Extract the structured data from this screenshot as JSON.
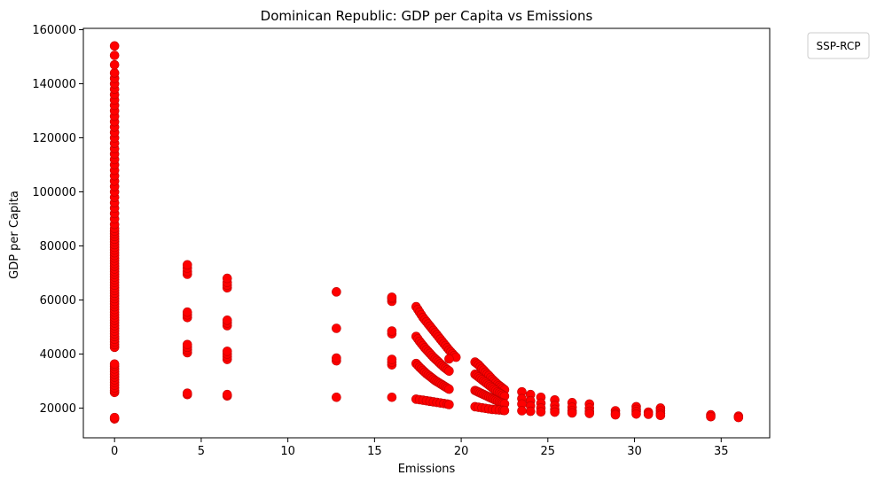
{
  "chart_data": {
    "type": "scatter",
    "title": "Dominican Republic: GDP per Capita vs Emissions",
    "xlabel": "Emissions",
    "ylabel": "GDP per Capita",
    "xlim": [
      -1.8,
      37.8
    ],
    "ylim": [
      9000,
      160500
    ],
    "xticks": [
      0,
      5,
      10,
      15,
      20,
      25,
      30,
      35
    ],
    "yticks": [
      20000,
      40000,
      60000,
      80000,
      100000,
      120000,
      140000,
      160000
    ],
    "grid": false,
    "legend": {
      "title": "SSP-RCP",
      "placement": "outside-top-right",
      "entries": []
    },
    "series": [
      {
        "color": "#ff0000",
        "marker_edge": "#c00000",
        "points": [
          [
            0,
            16000
          ],
          [
            0,
            16500
          ],
          [
            0,
            25800
          ],
          [
            0,
            26500
          ],
          [
            0,
            27500
          ],
          [
            0,
            28500
          ],
          [
            0,
            29500
          ],
          [
            0,
            30500
          ],
          [
            0,
            31500
          ],
          [
            0,
            32500
          ],
          [
            0,
            33500
          ],
          [
            0,
            34500
          ],
          [
            0,
            35500
          ],
          [
            0,
            36300
          ],
          [
            0,
            42500
          ],
          [
            0,
            43500
          ],
          [
            0,
            44500
          ],
          [
            0,
            45500
          ],
          [
            0,
            46500
          ],
          [
            0,
            47500
          ],
          [
            0,
            48500
          ],
          [
            0,
            49500
          ],
          [
            0,
            50500
          ],
          [
            0,
            51500
          ],
          [
            0,
            52500
          ],
          [
            0,
            53500
          ],
          [
            0,
            54500
          ],
          [
            0,
            55500
          ],
          [
            0,
            56500
          ],
          [
            0,
            57500
          ],
          [
            0,
            58500
          ],
          [
            0,
            59500
          ],
          [
            0,
            60500
          ],
          [
            0,
            61500
          ],
          [
            0,
            62500
          ],
          [
            0,
            63500
          ],
          [
            0,
            64500
          ],
          [
            0,
            65500
          ],
          [
            0,
            66500
          ],
          [
            0,
            67500
          ],
          [
            0,
            68500
          ],
          [
            0,
            69500
          ],
          [
            0,
            70500
          ],
          [
            0,
            71500
          ],
          [
            0,
            72500
          ],
          [
            0,
            73500
          ],
          [
            0,
            74500
          ],
          [
            0,
            75500
          ],
          [
            0,
            76500
          ],
          [
            0,
            77500
          ],
          [
            0,
            78500
          ],
          [
            0,
            79500
          ],
          [
            0,
            80500
          ],
          [
            0,
            81500
          ],
          [
            0,
            82500
          ],
          [
            0,
            83500
          ],
          [
            0,
            84500
          ],
          [
            0,
            85500
          ],
          [
            0,
            86500
          ],
          [
            0,
            88000
          ],
          [
            0,
            90000
          ],
          [
            0,
            92000
          ],
          [
            0,
            94000
          ],
          [
            0,
            96000
          ],
          [
            0,
            98000
          ],
          [
            0,
            100000
          ],
          [
            0,
            102000
          ],
          [
            0,
            104000
          ],
          [
            0,
            106000
          ],
          [
            0,
            108000
          ],
          [
            0,
            110000
          ],
          [
            0,
            112000
          ],
          [
            0,
            114000
          ],
          [
            0,
            116000
          ],
          [
            0,
            118000
          ],
          [
            0,
            120000
          ],
          [
            0,
            122000
          ],
          [
            0,
            124000
          ],
          [
            0,
            126000
          ],
          [
            0,
            128000
          ],
          [
            0,
            130000
          ],
          [
            0,
            132000
          ],
          [
            0,
            134000
          ],
          [
            0,
            136000
          ],
          [
            0,
            138000
          ],
          [
            0,
            140000
          ],
          [
            0,
            142000
          ],
          [
            0,
            144000
          ],
          [
            0,
            147000
          ],
          [
            0,
            150500
          ],
          [
            0,
            154000
          ],
          [
            4.2,
            25000
          ],
          [
            4.2,
            25500
          ],
          [
            4.2,
            40500
          ],
          [
            4.2,
            41500
          ],
          [
            4.2,
            42500
          ],
          [
            4.2,
            43500
          ],
          [
            4.2,
            53500
          ],
          [
            4.2,
            54500
          ],
          [
            4.2,
            55500
          ],
          [
            4.2,
            69500
          ],
          [
            4.2,
            70500
          ],
          [
            4.2,
            71800
          ],
          [
            4.2,
            73000
          ],
          [
            6.5,
            24500
          ],
          [
            6.5,
            25000
          ],
          [
            6.5,
            38000
          ],
          [
            6.5,
            39000
          ],
          [
            6.5,
            40000
          ],
          [
            6.5,
            41000
          ],
          [
            6.5,
            50500
          ],
          [
            6.5,
            51500
          ],
          [
            6.5,
            52500
          ],
          [
            6.5,
            64500
          ],
          [
            6.5,
            65500
          ],
          [
            6.5,
            66500
          ],
          [
            6.5,
            68000
          ],
          [
            12.8,
            24000
          ],
          [
            12.8,
            37500
          ],
          [
            12.8,
            38500
          ],
          [
            12.8,
            49500
          ],
          [
            12.8,
            63000
          ],
          [
            16,
            24000
          ],
          [
            16,
            36000
          ],
          [
            16,
            37000
          ],
          [
            16,
            38000
          ],
          [
            16,
            47500
          ],
          [
            16,
            48500
          ],
          [
            16,
            59500
          ],
          [
            16,
            60500
          ],
          [
            16,
            61000
          ],
          [
            17.4,
            57500
          ],
          [
            17.5,
            56500
          ],
          [
            17.6,
            55500
          ],
          [
            17.7,
            54500
          ],
          [
            17.8,
            53500
          ],
          [
            17.9,
            52700
          ],
          [
            18.0,
            51900
          ],
          [
            18.1,
            51100
          ],
          [
            18.2,
            50300
          ],
          [
            18.3,
            49500
          ],
          [
            18.4,
            48700
          ],
          [
            18.5,
            47900
          ],
          [
            18.6,
            47100
          ],
          [
            18.7,
            46300
          ],
          [
            18.8,
            45500
          ],
          [
            18.9,
            44700
          ],
          [
            19.0,
            43900
          ],
          [
            19.1,
            43100
          ],
          [
            19.2,
            42300
          ],
          [
            19.3,
            41500
          ],
          [
            19.4,
            40800
          ],
          [
            19.5,
            40100
          ],
          [
            19.6,
            39400
          ],
          [
            19.7,
            38800
          ],
          [
            19.3,
            38200
          ],
          [
            17.4,
            46500
          ],
          [
            17.5,
            45600
          ],
          [
            17.6,
            44700
          ],
          [
            17.7,
            43900
          ],
          [
            17.8,
            43100
          ],
          [
            17.9,
            42300
          ],
          [
            18.0,
            41600
          ],
          [
            18.1,
            40900
          ],
          [
            18.2,
            40200
          ],
          [
            18.3,
            39500
          ],
          [
            18.4,
            38800
          ],
          [
            18.5,
            38200
          ],
          [
            18.6,
            37600
          ],
          [
            18.7,
            37000
          ],
          [
            18.8,
            36400
          ],
          [
            18.9,
            35800
          ],
          [
            19.0,
            35200
          ],
          [
            19.1,
            34700
          ],
          [
            19.2,
            34200
          ],
          [
            19.3,
            33700
          ],
          [
            17.4,
            36500
          ],
          [
            17.5,
            35800
          ],
          [
            17.6,
            35100
          ],
          [
            17.7,
            34500
          ],
          [
            17.8,
            33900
          ],
          [
            17.9,
            33300
          ],
          [
            18.0,
            32700
          ],
          [
            18.1,
            32200
          ],
          [
            18.2,
            31700
          ],
          [
            18.3,
            31200
          ],
          [
            18.4,
            30700
          ],
          [
            18.5,
            30200
          ],
          [
            18.6,
            29800
          ],
          [
            18.7,
            29400
          ],
          [
            18.8,
            29000
          ],
          [
            18.9,
            28600
          ],
          [
            19.0,
            28200
          ],
          [
            19.1,
            27800
          ],
          [
            19.2,
            27400
          ],
          [
            19.3,
            27000
          ],
          [
            17.4,
            23300
          ],
          [
            17.6,
            23100
          ],
          [
            17.8,
            22900
          ],
          [
            18.0,
            22700
          ],
          [
            18.2,
            22500
          ],
          [
            18.4,
            22300
          ],
          [
            18.6,
            22100
          ],
          [
            18.8,
            21900
          ],
          [
            19.0,
            21700
          ],
          [
            19.2,
            21500
          ],
          [
            19.3,
            21300
          ],
          [
            20.8,
            37000
          ],
          [
            20.9,
            36500
          ],
          [
            21.0,
            36000
          ],
          [
            21.1,
            35300
          ],
          [
            21.2,
            34600
          ],
          [
            21.3,
            34000
          ],
          [
            21.4,
            33300
          ],
          [
            21.5,
            32600
          ],
          [
            21.6,
            32000
          ],
          [
            21.7,
            31300
          ],
          [
            21.8,
            30600
          ],
          [
            21.9,
            30000
          ],
          [
            22.0,
            29400
          ],
          [
            22.1,
            28800
          ],
          [
            22.2,
            28300
          ],
          [
            22.3,
            27800
          ],
          [
            22.4,
            27300
          ],
          [
            22.5,
            26800
          ],
          [
            20.8,
            32500
          ],
          [
            20.9,
            32000
          ],
          [
            21.0,
            31500
          ],
          [
            21.1,
            31000
          ],
          [
            21.2,
            30500
          ],
          [
            21.3,
            30000
          ],
          [
            21.4,
            29500
          ],
          [
            21.5,
            29000
          ],
          [
            21.6,
            28500
          ],
          [
            21.7,
            28000
          ],
          [
            21.8,
            27500
          ],
          [
            21.9,
            27000
          ],
          [
            22.0,
            26500
          ],
          [
            22.1,
            26000
          ],
          [
            22.2,
            25600
          ],
          [
            22.3,
            25200
          ],
          [
            22.4,
            24800
          ],
          [
            22.5,
            24400
          ],
          [
            20.8,
            26500
          ],
          [
            20.9,
            26200
          ],
          [
            21.0,
            25900
          ],
          [
            21.1,
            25600
          ],
          [
            21.2,
            25300
          ],
          [
            21.3,
            25000
          ],
          [
            21.4,
            24700
          ],
          [
            21.5,
            24400
          ],
          [
            21.6,
            24100
          ],
          [
            21.7,
            23800
          ],
          [
            21.8,
            23500
          ],
          [
            21.9,
            23200
          ],
          [
            22.0,
            22900
          ],
          [
            22.1,
            22600
          ],
          [
            22.2,
            22300
          ],
          [
            22.3,
            22000
          ],
          [
            22.4,
            21800
          ],
          [
            22.5,
            21600
          ],
          [
            20.8,
            20500
          ],
          [
            21.0,
            20300
          ],
          [
            21.2,
            20100
          ],
          [
            21.4,
            19900
          ],
          [
            21.6,
            19700
          ],
          [
            21.8,
            19500
          ],
          [
            22.0,
            19400
          ],
          [
            22.2,
            19300
          ],
          [
            22.4,
            19200
          ],
          [
            22.5,
            19100
          ],
          [
            23.5,
            26000
          ],
          [
            23.5,
            23500
          ],
          [
            23.5,
            21500
          ],
          [
            23.5,
            19000
          ],
          [
            24.0,
            25000
          ],
          [
            24.0,
            22700
          ],
          [
            24.0,
            20800
          ],
          [
            24.0,
            18800
          ],
          [
            24.6,
            24000
          ],
          [
            24.6,
            21800
          ],
          [
            24.6,
            20000
          ],
          [
            24.6,
            18600
          ],
          [
            25.4,
            23000
          ],
          [
            25.4,
            21000
          ],
          [
            25.4,
            19500
          ],
          [
            25.4,
            18500
          ],
          [
            26.4,
            22000
          ],
          [
            26.4,
            20300
          ],
          [
            26.4,
            19000
          ],
          [
            26.4,
            18200
          ],
          [
            27.4,
            21500
          ],
          [
            27.4,
            20000
          ],
          [
            27.4,
            18800
          ],
          [
            27.4,
            18000
          ],
          [
            28.9,
            19000
          ],
          [
            28.9,
            18000
          ],
          [
            28.9,
            17500
          ],
          [
            30.1,
            20500
          ],
          [
            30.1,
            19500
          ],
          [
            30.1,
            18700
          ],
          [
            30.1,
            17800
          ],
          [
            30.8,
            18500
          ],
          [
            30.8,
            17700
          ],
          [
            31.5,
            20000
          ],
          [
            31.5,
            19000
          ],
          [
            31.5,
            18000
          ],
          [
            31.5,
            17300
          ],
          [
            34.4,
            17500
          ],
          [
            34.4,
            16800
          ],
          [
            36.0,
            17000
          ],
          [
            36.0,
            16500
          ]
        ]
      }
    ]
  }
}
